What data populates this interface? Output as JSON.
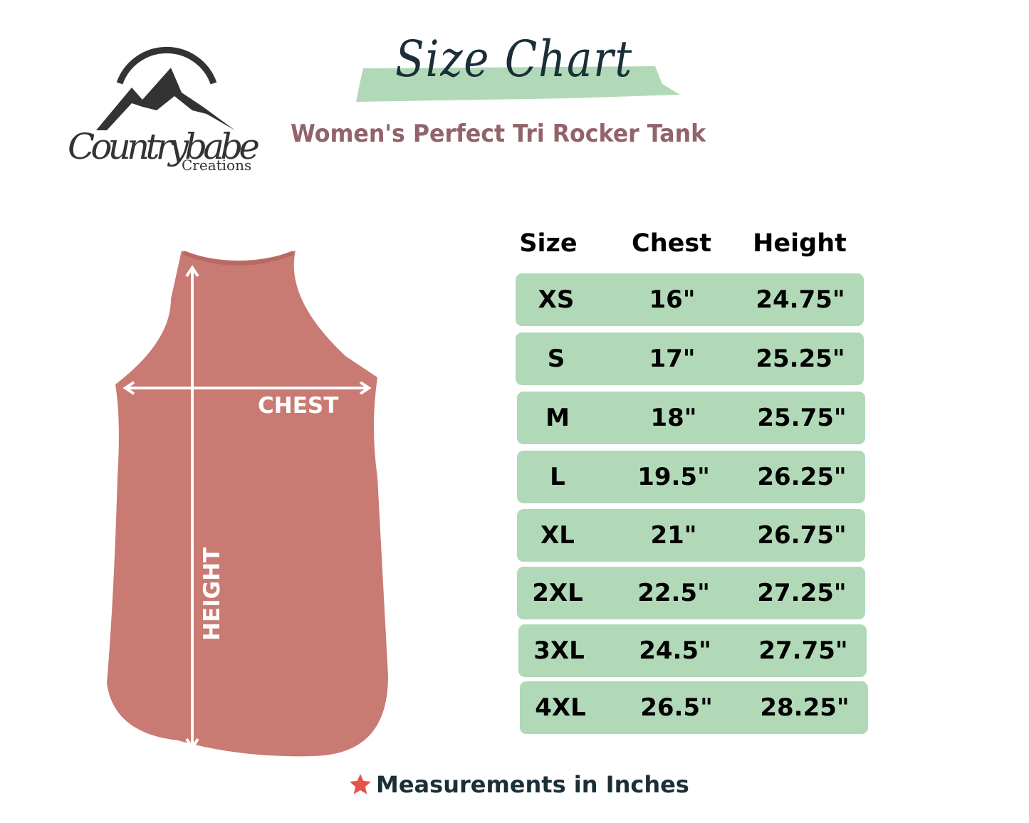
{
  "brand": {
    "name": "Countrybabe",
    "sub": "Creations"
  },
  "header": {
    "title": "Size Chart",
    "subtitle": "Women's Perfect Tri Rocker Tank"
  },
  "diagram": {
    "chest_label": "CHEST",
    "height_label": "HEIGHT",
    "garment_color": "#c97a72"
  },
  "table": {
    "headers": [
      "Size",
      "Chest",
      "Height"
    ],
    "rows": [
      [
        "XS",
        "16\"",
        "24.75\""
      ],
      [
        "S",
        "17\"",
        "25.25\""
      ],
      [
        "M",
        "18\"",
        "25.75\""
      ],
      [
        "L",
        "19.5\"",
        "26.25\""
      ],
      [
        "XL",
        "21\"",
        "26.75\""
      ],
      [
        "2XL",
        "22.5\"",
        "27.25\""
      ],
      [
        "3XL",
        "24.5\"",
        "27.75\""
      ],
      [
        "4XL",
        "26.5\"",
        "28.25\""
      ]
    ],
    "row_color": "#b1d9b8"
  },
  "footer": {
    "note": "Measurements in Inches",
    "icon": "star-icon",
    "icon_color": "#e8524a"
  }
}
